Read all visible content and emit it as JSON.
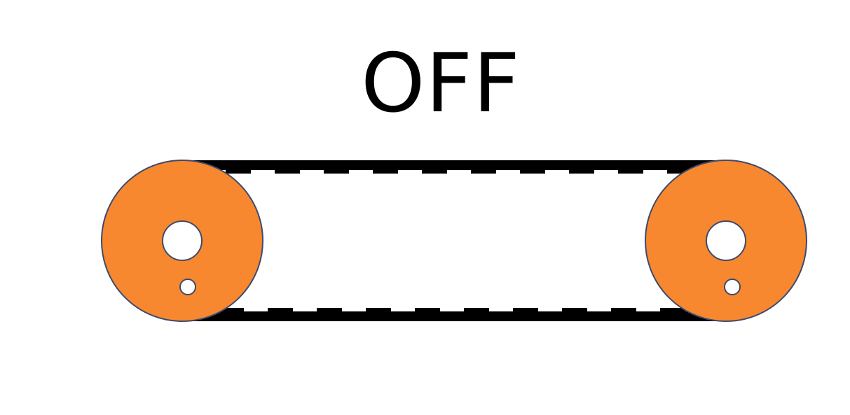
{
  "status": {
    "label": "OFF"
  },
  "colors": {
    "pulley_fill": "#F7882F",
    "pulley_outline": "#3E4A6B",
    "belt": "#000000",
    "hole_fill": "#FFFFFF",
    "background": "#FFFFFF"
  },
  "icons": {
    "left_pulley": "pulley-icon",
    "right_pulley": "pulley-icon",
    "belt": "timing-belt-icon"
  }
}
